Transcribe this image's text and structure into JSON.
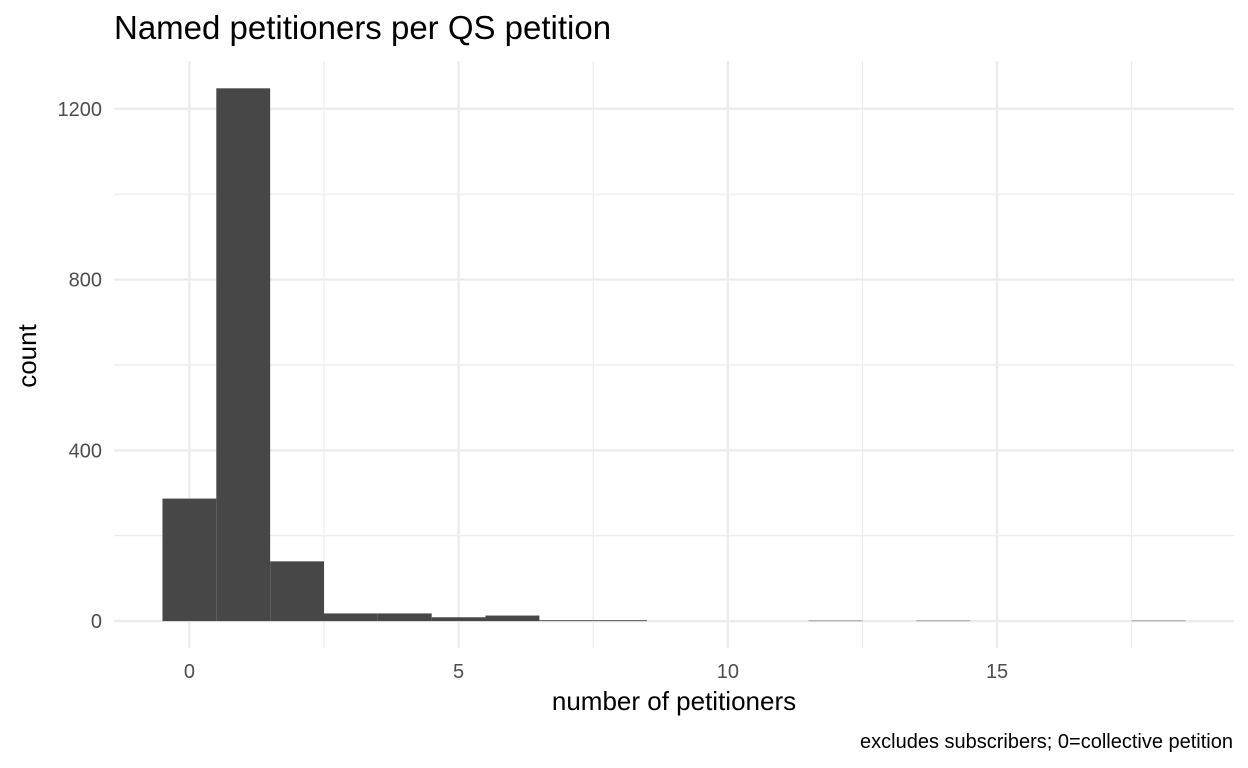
{
  "chart_data": {
    "type": "bar",
    "title": "Named petitioners per QS petition",
    "xlabel": "number of petitioners",
    "ylabel": "count",
    "caption": "excludes subscribers; 0=collective petition",
    "x": [
      0,
      1,
      2,
      3,
      4,
      5,
      6,
      7,
      8,
      9,
      10,
      11,
      12,
      13,
      14,
      15,
      16,
      17,
      18
    ],
    "values": [
      287,
      1248,
      140,
      18,
      18,
      9,
      13,
      2,
      2,
      0,
      0,
      0,
      1,
      0,
      1,
      0,
      0,
      0,
      1
    ],
    "xlim": [
      -1.4,
      19.4
    ],
    "ylim": [
      -63,
      1312
    ],
    "x_ticks": [
      0,
      5,
      10,
      15
    ],
    "y_ticks": [
      0,
      400,
      800,
      1200
    ],
    "x_tick_labels": [
      "0",
      "5",
      "10",
      "15"
    ],
    "y_tick_labels": [
      "0",
      "400",
      "800",
      "1200"
    ],
    "grid": true,
    "legend": "none",
    "bar_color": "#474747",
    "grid_color": "#ebebeb"
  }
}
